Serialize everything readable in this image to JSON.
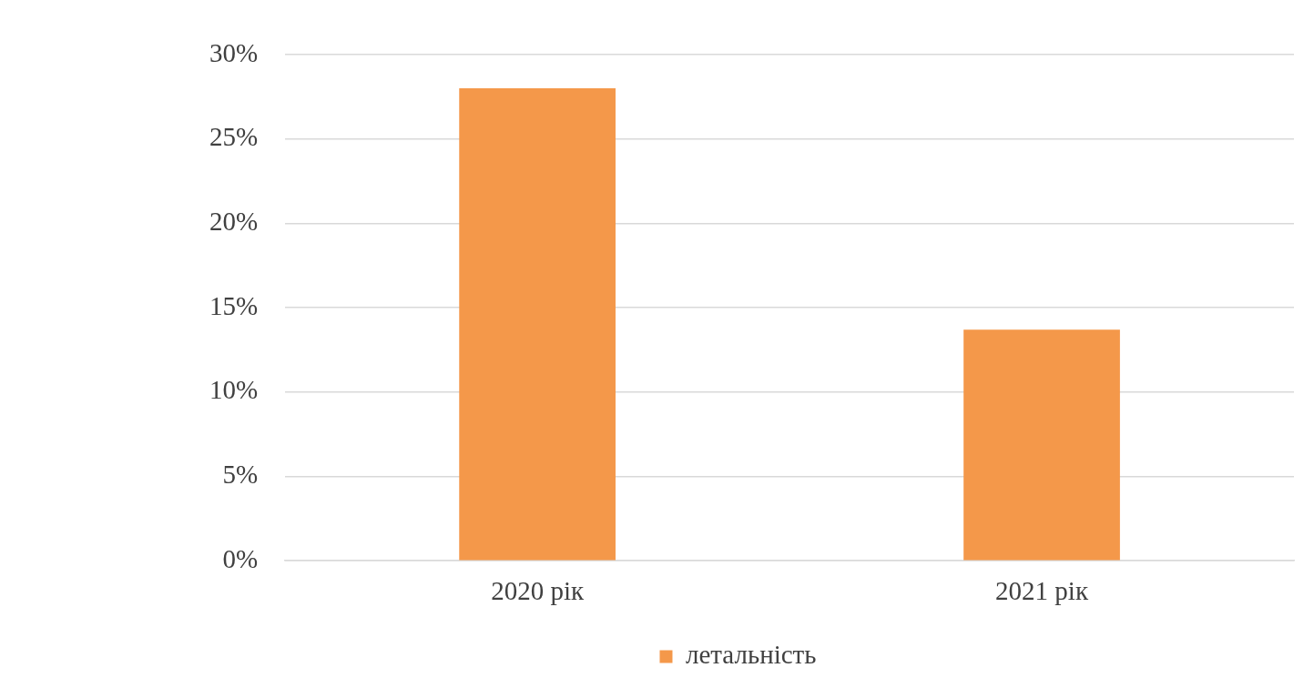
{
  "chart_data": {
    "type": "bar",
    "categories": [
      "2020 рік",
      "2021 рік"
    ],
    "series": [
      {
        "name": "летальність",
        "color": "#f4984a",
        "values": [
          28,
          13.7
        ]
      }
    ],
    "ylim": [
      0,
      30
    ],
    "yticks": [
      {
        "value": 0,
        "label": "0%"
      },
      {
        "value": 5,
        "label": "5%"
      },
      {
        "value": 10,
        "label": "10%"
      },
      {
        "value": 15,
        "label": "15%"
      },
      {
        "value": 20,
        "label": "20%"
      },
      {
        "value": 25,
        "label": "25%"
      },
      {
        "value": 30,
        "label": "30%"
      }
    ],
    "grid": "y",
    "legend": "bottom"
  }
}
